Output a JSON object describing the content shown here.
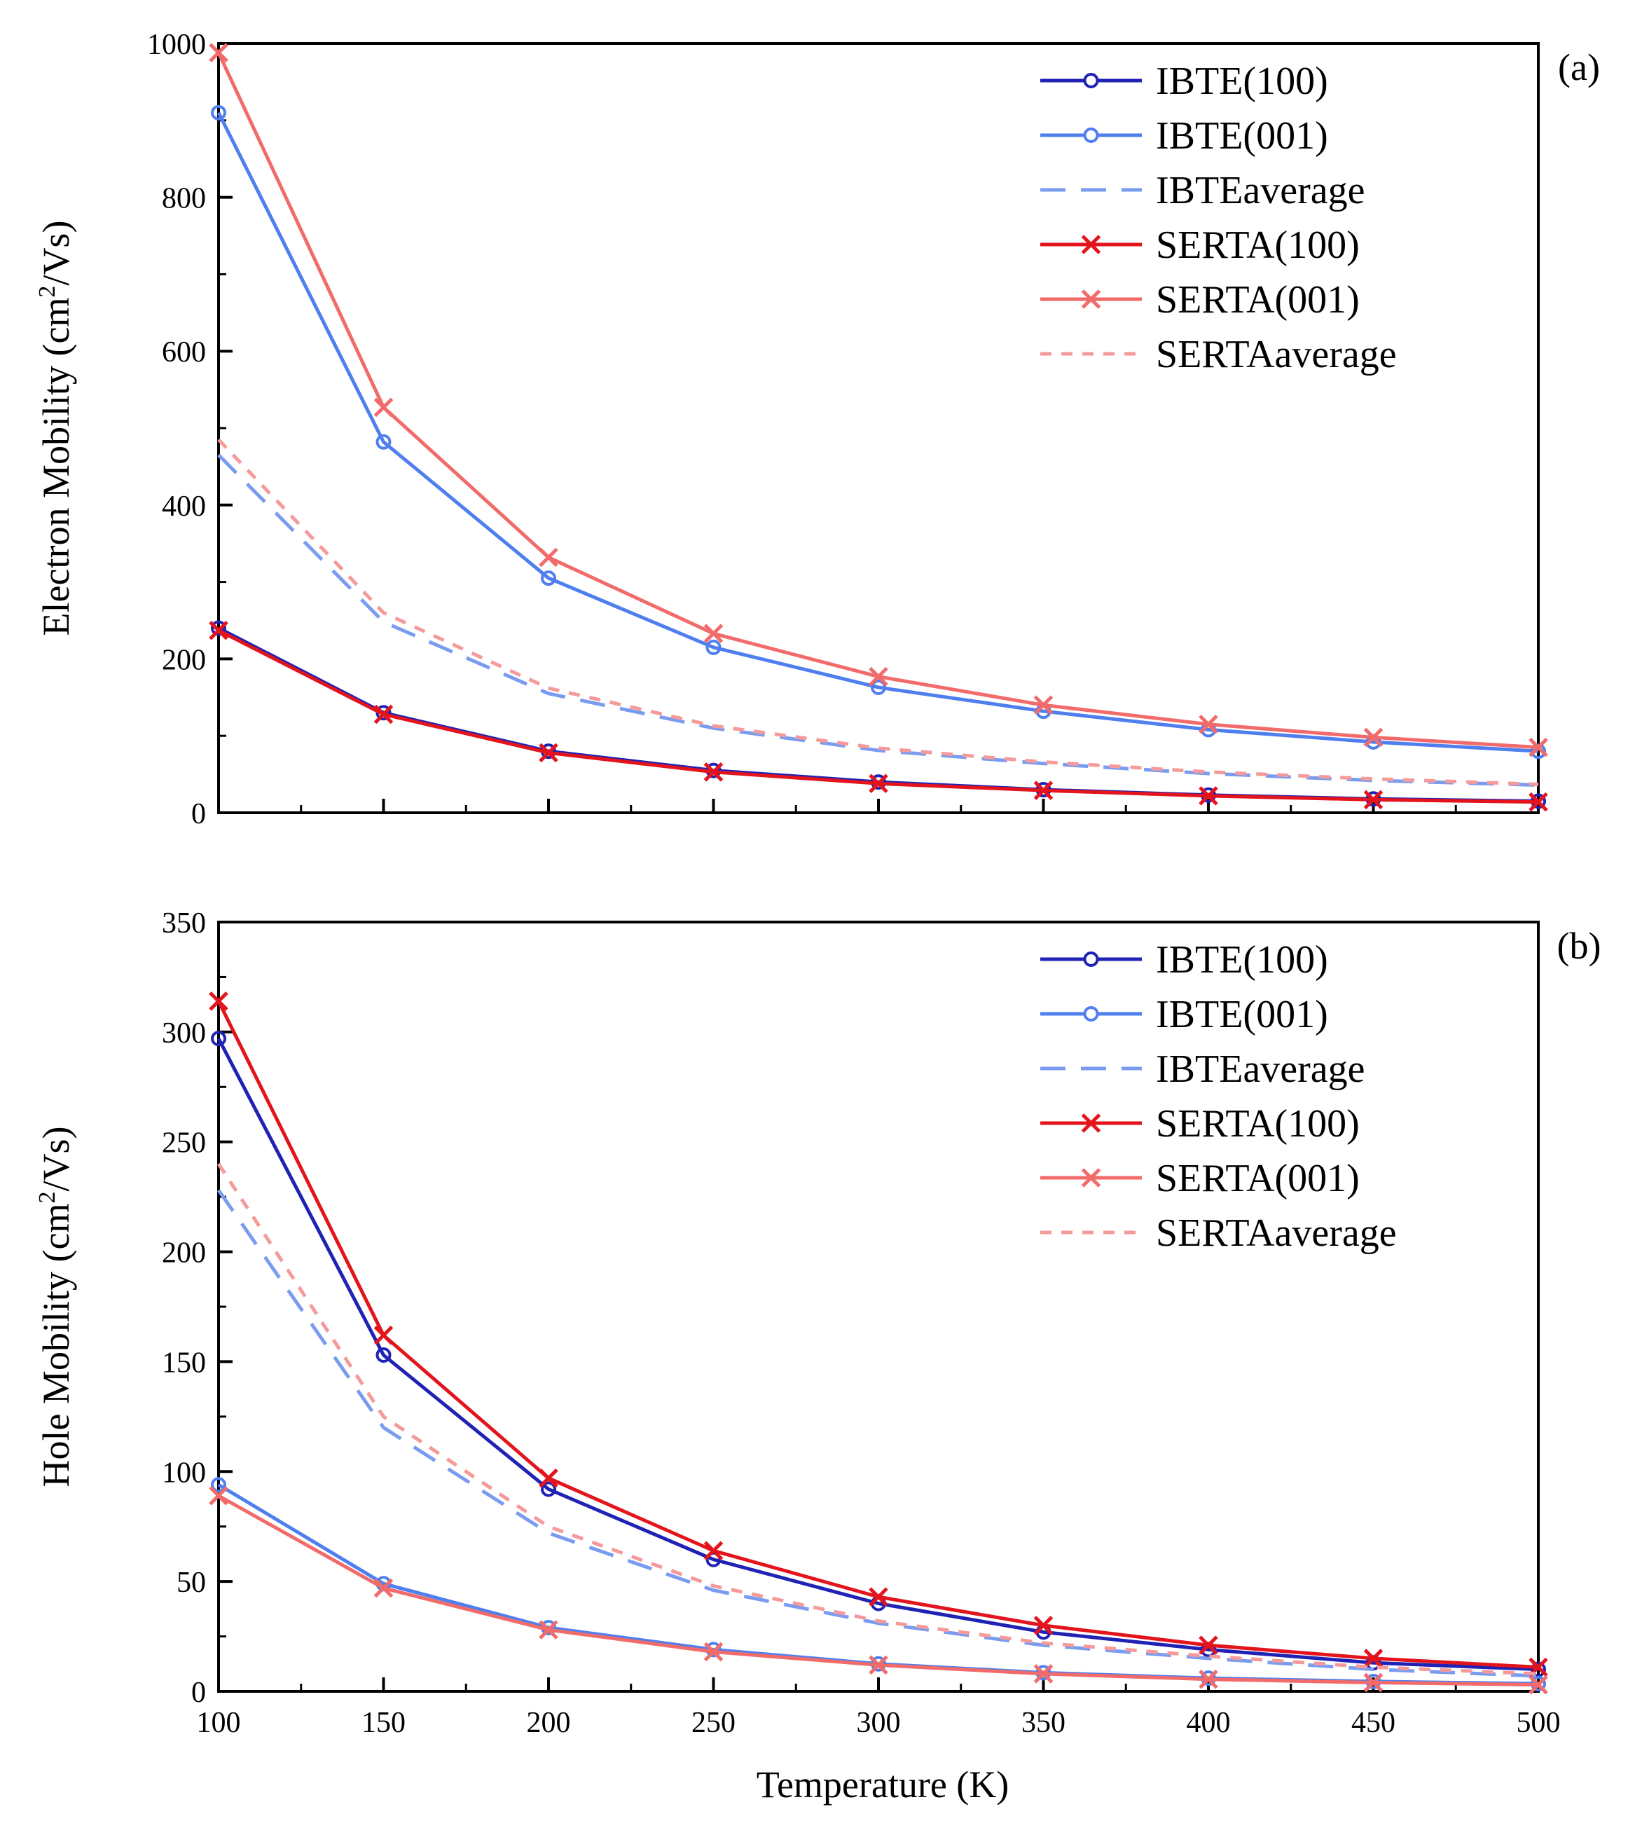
{
  "figure": {
    "x_title": "Temperature (K)"
  },
  "chart_data": [
    {
      "type": "line",
      "panel_label": "(a)",
      "ylabel": "Electron Mobility (cm²/Vs)",
      "ylabel_parts": [
        "Electron Mobility (cm",
        "2",
        "/Vs)"
      ],
      "x": [
        100,
        150,
        200,
        250,
        300,
        350,
        400,
        450,
        500
      ],
      "xlim": [
        100,
        500
      ],
      "ylim": [
        0,
        1000
      ],
      "yticks": [
        0,
        200,
        400,
        600,
        800,
        1000
      ],
      "xticks": [
        100,
        150,
        200,
        250,
        300,
        350,
        400,
        450,
        500
      ],
      "legend_position": "top-right",
      "grid": false,
      "series": [
        {
          "name": "IBTE(100)",
          "values": [
            240,
            130,
            80,
            55,
            40,
            30,
            23,
            18,
            15
          ],
          "color": "#1f22b4",
          "marker": "circle",
          "dash": "solid"
        },
        {
          "name": "IBTE(001)",
          "values": [
            910,
            482,
            305,
            215,
            163,
            132,
            108,
            92,
            80
          ],
          "color": "#4f7fef",
          "marker": "circle",
          "dash": "solid"
        },
        {
          "name": "IBTEaverage",
          "values": [
            465,
            248,
            155,
            110,
            81,
            64,
            51,
            42,
            36
          ],
          "color": "#7a9cf0",
          "marker": "none",
          "dash": "longdash"
        },
        {
          "name": "SERTA(100)",
          "values": [
            237,
            128,
            78,
            53,
            38,
            29,
            22,
            17,
            14
          ],
          "color": "#e3141c",
          "marker": "x",
          "dash": "solid"
        },
        {
          "name": "SERTA(001)",
          "values": [
            988,
            527,
            332,
            233,
            177,
            140,
            115,
            98,
            85
          ],
          "color": "#f26b6b",
          "marker": "x",
          "dash": "solid"
        },
        {
          "name": "SERTAaverage",
          "values": [
            485,
            260,
            162,
            113,
            84,
            66,
            53,
            44,
            37
          ],
          "color": "#f59a9a",
          "marker": "none",
          "dash": "shortdash"
        }
      ]
    },
    {
      "type": "line",
      "panel_label": "(b)",
      "ylabel": "Hole Mobility (cm²/Vs)",
      "ylabel_parts": [
        "Hole Mobility (cm",
        "2",
        "/Vs)"
      ],
      "x": [
        100,
        150,
        200,
        250,
        300,
        350,
        400,
        450,
        500
      ],
      "xlim": [
        100,
        500
      ],
      "ylim": [
        0,
        350
      ],
      "yticks": [
        0,
        50,
        100,
        150,
        200,
        250,
        300,
        350
      ],
      "xticks": [
        100,
        150,
        200,
        250,
        300,
        350,
        400,
        450,
        500
      ],
      "legend_position": "top-right",
      "grid": false,
      "series": [
        {
          "name": "IBTE(100)",
          "values": [
            297,
            153,
            92,
            60,
            40,
            27,
            19,
            13,
            10
          ],
          "color": "#1f22b4",
          "marker": "circle",
          "dash": "solid"
        },
        {
          "name": "IBTE(001)",
          "values": [
            94,
            49,
            29,
            19,
            12.5,
            8.5,
            6,
            4.5,
            3.5
          ],
          "color": "#4f7fef",
          "marker": "circle",
          "dash": "solid"
        },
        {
          "name": "IBTEaverage",
          "values": [
            228,
            120,
            72,
            46,
            31,
            21,
            15,
            10,
            7
          ],
          "color": "#7a9cf0",
          "marker": "none",
          "dash": "longdash"
        },
        {
          "name": "SERTA(100)",
          "values": [
            314,
            162,
            97,
            64,
            43,
            30,
            21,
            15,
            11
          ],
          "color": "#e3141c",
          "marker": "x",
          "dash": "solid"
        },
        {
          "name": "SERTA(001)",
          "values": [
            89,
            47,
            28,
            18,
            12,
            8,
            5.5,
            4,
            3
          ],
          "color": "#f26b6b",
          "marker": "x",
          "dash": "solid"
        },
        {
          "name": "SERTAaverage",
          "values": [
            240,
            125,
            75,
            48,
            32,
            22,
            16,
            11,
            8
          ],
          "color": "#f59a9a",
          "marker": "none",
          "dash": "shortdash"
        }
      ]
    }
  ]
}
